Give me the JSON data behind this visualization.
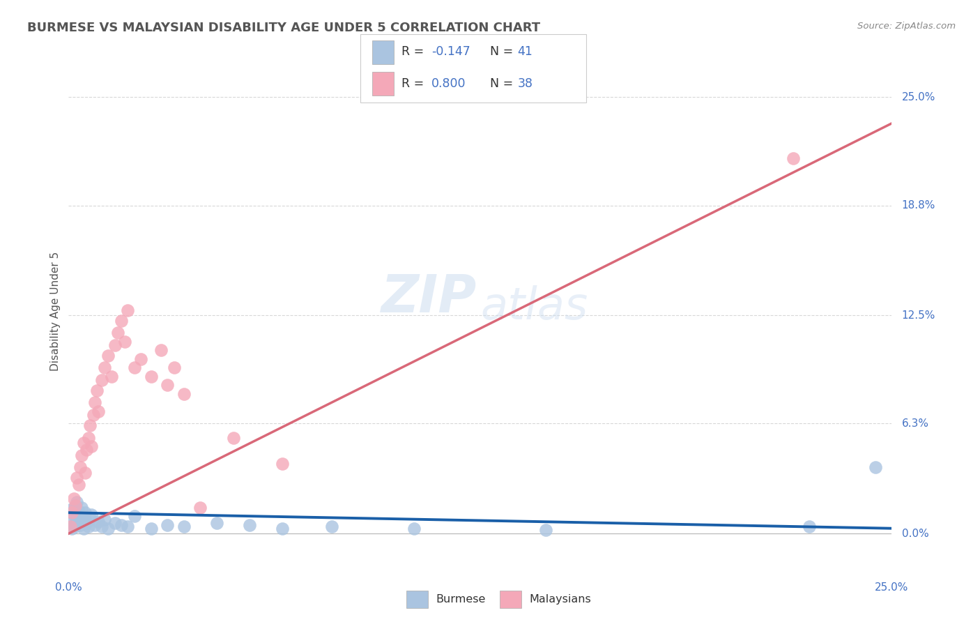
{
  "title": "BURMESE VS MALAYSIAN DISABILITY AGE UNDER 5 CORRELATION CHART",
  "source": "Source: ZipAtlas.com",
  "ylabel": "Disability Age Under 5",
  "ytick_values": [
    0.0,
    6.3,
    12.5,
    18.8,
    25.0
  ],
  "ytick_labels": [
    "0.0%",
    "6.3%",
    "12.5%",
    "18.8%",
    "25.0%"
  ],
  "xlim": [
    0.0,
    25.0
  ],
  "ylim": [
    -1.5,
    27.0
  ],
  "legend_blue_r": "-0.147",
  "legend_blue_n": "41",
  "legend_pink_r": "0.800",
  "legend_pink_n": "38",
  "watermark_zip": "ZIP",
  "watermark_atlas": "atlas",
  "blue_scatter_color": "#aac4e0",
  "pink_scatter_color": "#f4a8b8",
  "blue_line_color": "#1a5fa8",
  "pink_line_color": "#d96878",
  "title_color": "#555555",
  "axis_tick_color": "#4472c4",
  "source_color": "#888888",
  "grid_color": "#d8d8d8",
  "burmese_x": [
    0.05,
    0.1,
    0.1,
    0.15,
    0.15,
    0.2,
    0.2,
    0.25,
    0.25,
    0.3,
    0.3,
    0.35,
    0.4,
    0.4,
    0.45,
    0.5,
    0.5,
    0.55,
    0.6,
    0.65,
    0.7,
    0.8,
    0.9,
    1.0,
    1.1,
    1.2,
    1.4,
    1.6,
    1.8,
    2.0,
    2.5,
    3.0,
    3.5,
    4.5,
    5.5,
    6.5,
    8.0,
    10.5,
    14.5,
    22.5,
    24.5
  ],
  "burmese_y": [
    0.6,
    1.4,
    0.3,
    1.1,
    0.5,
    1.6,
    0.4,
    0.9,
    1.8,
    0.7,
    1.3,
    0.5,
    1.0,
    1.5,
    0.3,
    0.8,
    1.2,
    0.6,
    0.4,
    0.9,
    1.1,
    0.5,
    0.7,
    0.4,
    0.8,
    0.3,
    0.6,
    0.5,
    0.4,
    1.0,
    0.3,
    0.5,
    0.4,
    0.6,
    0.5,
    0.3,
    0.4,
    0.3,
    0.2,
    0.4,
    3.8
  ],
  "malaysian_x": [
    0.05,
    0.1,
    0.15,
    0.2,
    0.25,
    0.3,
    0.35,
    0.4,
    0.45,
    0.5,
    0.55,
    0.6,
    0.65,
    0.7,
    0.75,
    0.8,
    0.85,
    0.9,
    1.0,
    1.1,
    1.2,
    1.3,
    1.4,
    1.5,
    1.6,
    1.7,
    1.8,
    2.0,
    2.2,
    2.5,
    2.8,
    3.0,
    3.2,
    3.5,
    4.0,
    5.0,
    6.5,
    22.0
  ],
  "malaysian_y": [
    0.4,
    1.2,
    2.0,
    1.6,
    3.2,
    2.8,
    3.8,
    4.5,
    5.2,
    3.5,
    4.8,
    5.5,
    6.2,
    5.0,
    6.8,
    7.5,
    8.2,
    7.0,
    8.8,
    9.5,
    10.2,
    9.0,
    10.8,
    11.5,
    12.2,
    11.0,
    12.8,
    9.5,
    10.0,
    9.0,
    10.5,
    8.5,
    9.5,
    8.0,
    1.5,
    5.5,
    4.0,
    21.5
  ],
  "pink_line_x0": 0.0,
  "pink_line_y0": 0.0,
  "pink_line_x1": 25.0,
  "pink_line_y1": 23.5,
  "blue_line_x0": 0.0,
  "blue_line_y0": 1.2,
  "blue_line_x1": 25.0,
  "blue_line_y1": 0.3
}
